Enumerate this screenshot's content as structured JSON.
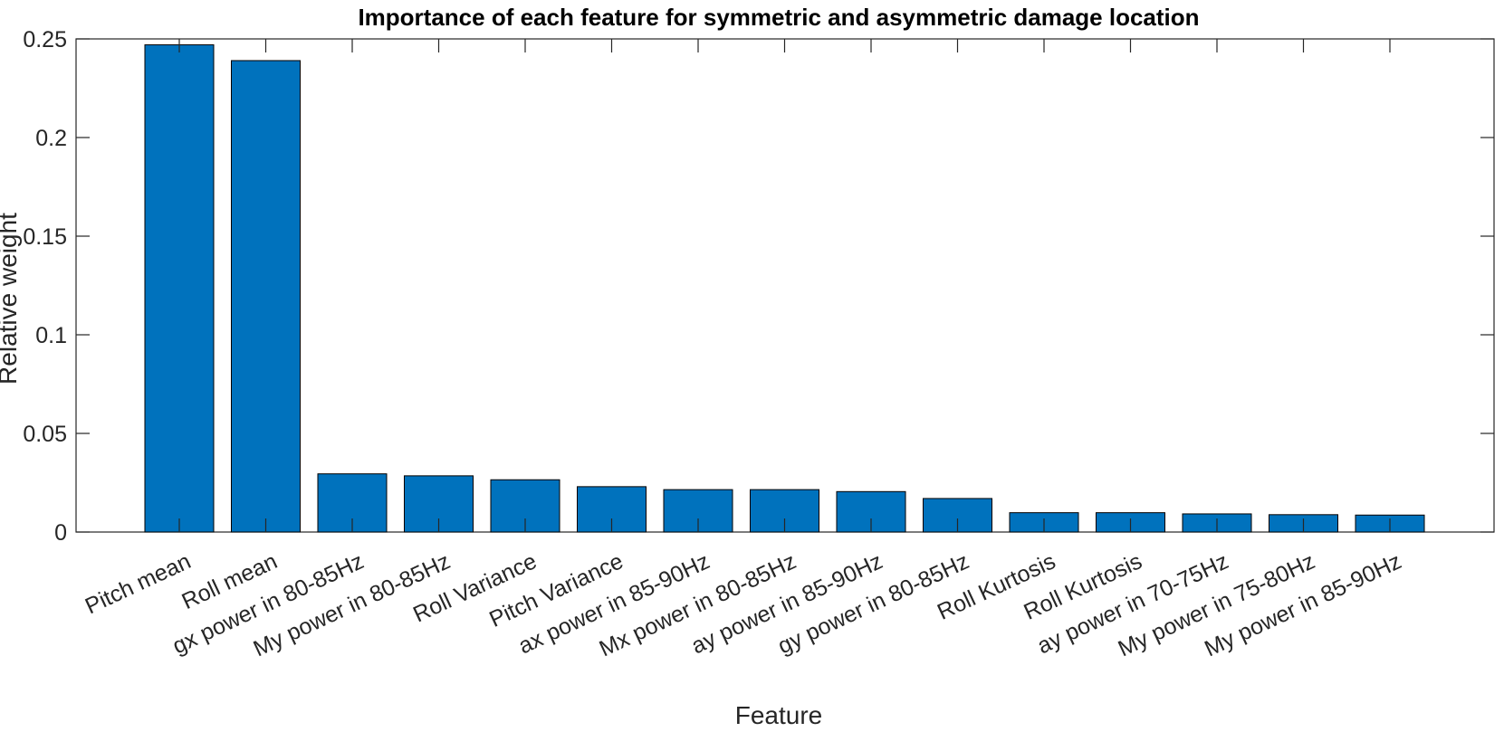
{
  "chart_data": {
    "type": "bar",
    "title": "Importance of each feature for symmetric and asymmetric damage location",
    "xlabel": "Feature",
    "ylabel": "Relative weight",
    "ylim": [
      0,
      0.25
    ],
    "yticks": [
      0,
      0.05,
      0.1,
      0.15,
      0.2,
      0.25
    ],
    "ytick_labels": [
      "0",
      "0.05",
      "0.1",
      "0.15",
      "0.2",
      "0.25"
    ],
    "grid": false,
    "bar_color": "#0072BD",
    "categories": [
      "Pitch mean",
      "Roll mean",
      "gx power in 80-85Hz",
      "My power in 80-85Hz",
      "Roll Variance",
      "Pitch Variance",
      "ax power in 85-90Hz",
      "Mx power in 80-85Hz",
      "ay power in 85-90Hz",
      "gy power in 80-85Hz",
      "Roll Kurtosis",
      "Roll Kurtosis",
      "ay power in 70-75Hz",
      "My power in 75-80Hz",
      "My power in 85-90Hz"
    ],
    "values": [
      0.247,
      0.239,
      0.0295,
      0.0285,
      0.0265,
      0.023,
      0.0215,
      0.0215,
      0.0205,
      0.017,
      0.0098,
      0.0098,
      0.0092,
      0.0088,
      0.0086
    ]
  }
}
